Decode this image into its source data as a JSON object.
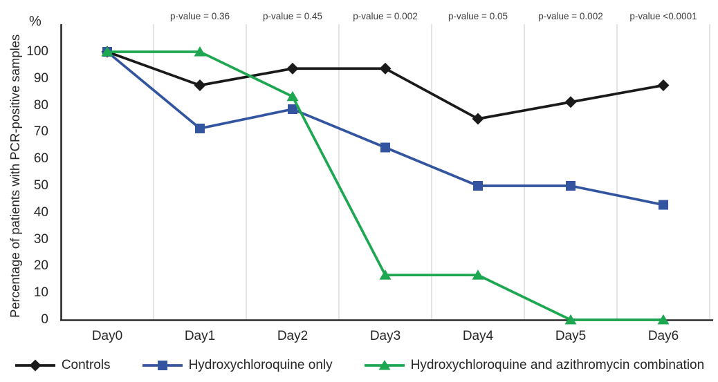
{
  "chart_data": {
    "type": "line",
    "title": "",
    "y_unit_label": "%",
    "ylabel": "Percentage of patients with PCR-positive samples",
    "xlabel": "",
    "categories": [
      "Day0",
      "Day1",
      "Day2",
      "Day3",
      "Day4",
      "Day5",
      "Day6"
    ],
    "yticks": [
      0,
      10,
      20,
      30,
      40,
      50,
      60,
      70,
      80,
      90,
      100
    ],
    "ylim": [
      0,
      100
    ],
    "grid": "vertical-category-boundaries",
    "legend_position": "bottom",
    "series": [
      {
        "name": "Controls",
        "marker": "diamond",
        "color": "#1a1a1a",
        "values": [
          100,
          87.5,
          93.75,
          93.75,
          75,
          81.25,
          87.5
        ]
      },
      {
        "name": "Hydroxychloroquine only",
        "marker": "square",
        "color": "#3355a0",
        "values": [
          100,
          71.4,
          78.6,
          64.3,
          50,
          50,
          42.9
        ]
      },
      {
        "name": "Hydroxychloroquine and azithromycin combination",
        "marker": "triangle",
        "color": "#1ca750",
        "values": [
          100,
          100,
          83.3,
          16.7,
          16.7,
          0,
          0
        ]
      }
    ],
    "annotations": [
      {
        "category": "Day1",
        "label": "p-value = 0.36"
      },
      {
        "category": "Day2",
        "label": "p-value = 0.45"
      },
      {
        "category": "Day3",
        "label": "p-value = 0.002"
      },
      {
        "category": "Day4",
        "label": "p-value = 0.05"
      },
      {
        "category": "Day5",
        "label": "p-value = 0.002"
      },
      {
        "category": "Day6",
        "label": "p-value <0.0001"
      }
    ],
    "colors": {
      "axis": "#2b2b2b",
      "gridline": "#d9d9d9",
      "annotation_text": "#3d3d3d",
      "tick_text": "#262626"
    }
  }
}
